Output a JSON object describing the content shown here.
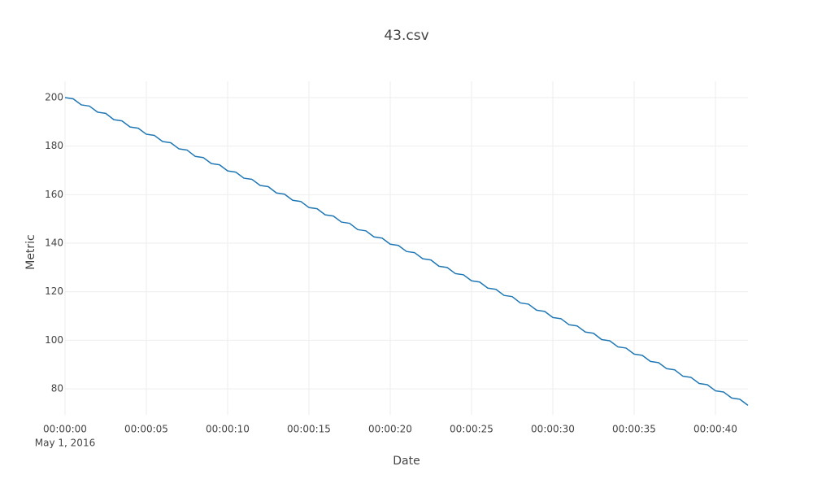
{
  "chart_data": {
    "type": "line",
    "title": "43.csv",
    "x_label": "Date",
    "y_label": "Metric",
    "x": [
      "2016-05-01 00:00:00",
      "2016-05-01 00:00:00.5",
      "2016-05-01 00:00:01",
      "2016-05-01 00:00:01.5",
      "2016-05-01 00:00:02",
      "2016-05-01 00:00:02.5",
      "2016-05-01 00:00:03",
      "2016-05-01 00:00:03.5",
      "2016-05-01 00:00:04",
      "2016-05-01 00:00:04.5",
      "2016-05-01 00:00:05",
      "2016-05-01 00:00:05.5",
      "2016-05-01 00:00:06",
      "2016-05-01 00:00:06.5",
      "2016-05-01 00:00:07",
      "2016-05-01 00:00:07.5",
      "2016-05-01 00:00:08",
      "2016-05-01 00:00:08.5",
      "2016-05-01 00:00:09",
      "2016-05-01 00:00:09.5",
      "2016-05-01 00:00:10",
      "2016-05-01 00:00:10.5",
      "2016-05-01 00:00:11",
      "2016-05-01 00:00:11.5",
      "2016-05-01 00:00:12",
      "2016-05-01 00:00:12.5",
      "2016-05-01 00:00:13",
      "2016-05-01 00:00:13.5",
      "2016-05-01 00:00:14",
      "2016-05-01 00:00:14.5",
      "2016-05-01 00:00:15",
      "2016-05-01 00:00:15.5",
      "2016-05-01 00:00:16",
      "2016-05-01 00:00:16.5",
      "2016-05-01 00:00:17",
      "2016-05-01 00:00:17.5",
      "2016-05-01 00:00:18",
      "2016-05-01 00:00:18.5",
      "2016-05-01 00:00:19",
      "2016-05-01 00:00:19.5",
      "2016-05-01 00:00:20",
      "2016-05-01 00:00:20.5",
      "2016-05-01 00:00:21",
      "2016-05-01 00:00:21.5",
      "2016-05-01 00:00:22",
      "2016-05-01 00:00:22.5",
      "2016-05-01 00:00:23",
      "2016-05-01 00:00:23.5",
      "2016-05-01 00:00:24",
      "2016-05-01 00:00:24.5",
      "2016-05-01 00:00:25",
      "2016-05-01 00:00:25.5",
      "2016-05-01 00:00:26",
      "2016-05-01 00:00:26.5",
      "2016-05-01 00:00:27",
      "2016-05-01 00:00:27.5",
      "2016-05-01 00:00:28",
      "2016-05-01 00:00:28.5",
      "2016-05-01 00:00:29",
      "2016-05-01 00:00:29.5",
      "2016-05-01 00:00:30",
      "2016-05-01 00:00:30.5",
      "2016-05-01 00:00:31",
      "2016-05-01 00:00:31.5",
      "2016-05-01 00:00:32",
      "2016-05-01 00:00:32.5",
      "2016-05-01 00:00:33",
      "2016-05-01 00:00:33.5",
      "2016-05-01 00:00:34",
      "2016-05-01 00:00:34.5",
      "2016-05-01 00:00:35",
      "2016-05-01 00:00:35.5",
      "2016-05-01 00:00:36",
      "2016-05-01 00:00:36.5",
      "2016-05-01 00:00:37",
      "2016-05-01 00:00:37.5",
      "2016-05-01 00:00:38",
      "2016-05-01 00:00:38.5",
      "2016-05-01 00:00:39",
      "2016-05-01 00:00:39.5",
      "2016-05-01 00:00:40",
      "2016-05-01 00:00:40.5",
      "2016-05-01 00:00:41",
      "2016-05-01 00:00:41.5",
      "2016-05-01 00:00:42"
    ],
    "series": [
      {
        "color": "#1f77b4",
        "values": [
          200.0,
          199.5,
          197.0,
          196.5,
          194.0,
          193.5,
          190.9,
          190.4,
          187.9,
          187.4,
          184.9,
          184.4,
          181.9,
          181.4,
          178.9,
          178.4,
          175.8,
          175.3,
          172.8,
          172.3,
          169.8,
          169.3,
          166.8,
          166.3,
          163.8,
          163.3,
          160.7,
          160.2,
          157.7,
          157.2,
          154.7,
          154.2,
          151.7,
          151.2,
          148.7,
          148.2,
          145.6,
          145.1,
          142.6,
          142.1,
          139.6,
          139.1,
          136.6,
          136.1,
          133.6,
          133.1,
          130.5,
          130.0,
          127.5,
          127.0,
          124.5,
          124.0,
          121.5,
          121.0,
          118.5,
          118.0,
          115.4,
          114.9,
          112.4,
          111.9,
          109.4,
          108.9,
          106.4,
          105.9,
          103.4,
          102.9,
          100.3,
          99.8,
          97.3,
          96.8,
          94.3,
          93.8,
          91.3,
          90.8,
          88.3,
          87.8,
          85.2,
          84.7,
          82.2,
          81.7,
          79.2,
          78.7,
          76.2,
          75.7,
          73.2
        ]
      }
    ],
    "xlim": [
      "2016-05-01 00:00:00",
      "2016-05-01 00:00:42"
    ],
    "xticks": [
      {
        "value": "2016-05-01 00:00:00",
        "label": "00:00:00"
      },
      {
        "value": "2016-05-01 00:00:05",
        "label": "00:00:05"
      },
      {
        "value": "2016-05-01 00:00:10",
        "label": "00:00:10"
      },
      {
        "value": "2016-05-01 00:00:15",
        "label": "00:00:15"
      },
      {
        "value": "2016-05-01 00:00:20",
        "label": "00:00:20"
      },
      {
        "value": "2016-05-01 00:00:25",
        "label": "00:00:25"
      },
      {
        "value": "2016-05-01 00:00:30",
        "label": "00:00:30"
      },
      {
        "value": "2016-05-01 00:00:35",
        "label": "00:00:35"
      },
      {
        "value": "2016-05-01 00:00:40",
        "label": "00:00:40"
      }
    ],
    "xtick_date_label": "May 1, 2016",
    "ylim": [
      69.3,
      206.7
    ],
    "yticks": [
      80,
      100,
      120,
      140,
      160,
      180,
      200
    ],
    "grid": true
  }
}
